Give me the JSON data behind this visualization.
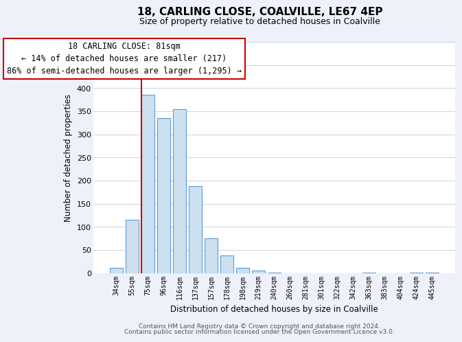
{
  "title": "18, CARLING CLOSE, COALVILLE, LE67 4EP",
  "subtitle": "Size of property relative to detached houses in Coalville",
  "xlabel": "Distribution of detached houses by size in Coalville",
  "ylabel": "Number of detached properties",
  "bar_labels": [
    "34sqm",
    "55sqm",
    "75sqm",
    "96sqm",
    "116sqm",
    "137sqm",
    "157sqm",
    "178sqm",
    "198sqm",
    "219sqm",
    "240sqm",
    "260sqm",
    "281sqm",
    "301sqm",
    "322sqm",
    "342sqm",
    "363sqm",
    "383sqm",
    "404sqm",
    "424sqm",
    "445sqm"
  ],
  "bar_values": [
    12,
    115,
    385,
    335,
    355,
    188,
    75,
    38,
    12,
    5,
    1,
    0,
    0,
    0,
    0,
    0,
    1,
    0,
    0,
    1,
    1
  ],
  "bar_color": "#cce0f0",
  "bar_edge_color": "#5b9bd5",
  "vline_color": "#cc0000",
  "vline_bar_index": 2,
  "ylim": [
    0,
    500
  ],
  "yticks": [
    0,
    50,
    100,
    150,
    200,
    250,
    300,
    350,
    400,
    450,
    500
  ],
  "annotation_line0": "18 CARLING CLOSE: 81sqm",
  "annotation_line1": "← 14% of detached houses are smaller (217)",
  "annotation_line2": "86% of semi-detached houses are larger (1,295) →",
  "annotation_box_color": "#ffffff",
  "annotation_box_edge": "#cc0000",
  "footer1": "Contains HM Land Registry data © Crown copyright and database right 2024.",
  "footer2": "Contains public sector information licensed under the Open Government Licence v3.0.",
  "bg_color": "#eef1fa",
  "plot_bg_color": "#ffffff",
  "grid_color": "#c8d4e8"
}
